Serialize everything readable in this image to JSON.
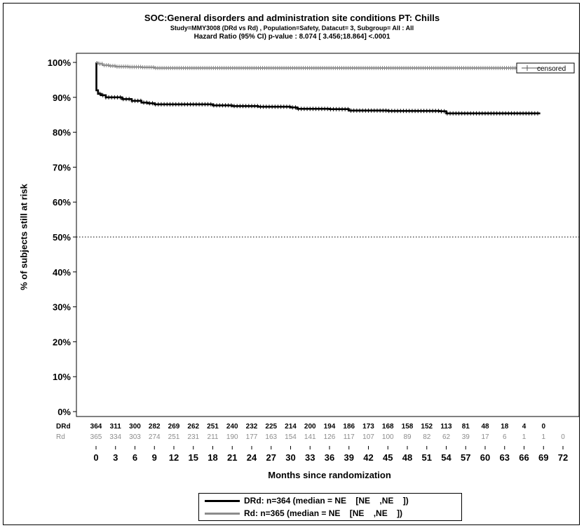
{
  "chart_data": {
    "type": "line",
    "title": "SOC:General disorders and administration site conditions PT: Chills",
    "subtitle": "Study=MMY3008 (DRd vs Rd) , Population=Safety, Datacut= 3, Subgroup= All : All",
    "hazard_ratio_text": "Hazard Ratio (95% CI) p-value :    8.074 [ 3.456;18.864]  <.0001",
    "xlabel": "Months since randomization",
    "ylabel": "% of subjects still at risk",
    "xlim": [
      0,
      72
    ],
    "ylim": [
      0,
      100
    ],
    "x_ticks": [
      0,
      3,
      6,
      9,
      12,
      15,
      18,
      21,
      24,
      27,
      30,
      33,
      36,
      39,
      42,
      45,
      48,
      51,
      54,
      57,
      60,
      63,
      66,
      69,
      72
    ],
    "y_ticks": [
      0,
      10,
      20,
      30,
      40,
      50,
      60,
      70,
      80,
      90,
      100
    ],
    "y_tick_format": "%",
    "reference_line_y": 50,
    "censored_legend_label": "censored",
    "series": [
      {
        "name": "DRd",
        "color": "#000000",
        "x": [
          0,
          0.05,
          0.3,
          0.8,
          1.5,
          2.5,
          4,
          5.5,
          7,
          8,
          9,
          12,
          16,
          18,
          20,
          21,
          23,
          25,
          28,
          30,
          31,
          33,
          36,
          38,
          39,
          42,
          45,
          48,
          51,
          53,
          54,
          57,
          60,
          63,
          66,
          68.5
        ],
        "y": [
          100,
          92,
          91,
          90.6,
          90,
          90,
          89.5,
          89,
          88.5,
          88.3,
          88,
          88,
          88,
          87.7,
          87.7,
          87.5,
          87.5,
          87.3,
          87.3,
          87.1,
          86.7,
          86.7,
          86.6,
          86.6,
          86.2,
          86.2,
          86.1,
          86.1,
          86.1,
          86,
          85.4,
          85.4,
          85.4,
          85.4,
          85.4,
          85.4
        ]
      },
      {
        "name": "Rd",
        "color": "#8c8c8c",
        "x": [
          0,
          0.3,
          1,
          2,
          3,
          5,
          7,
          9,
          12,
          20,
          30,
          40,
          50,
          60,
          69
        ],
        "y": [
          100,
          99.6,
          99.2,
          99,
          98.8,
          98.7,
          98.6,
          98.4,
          98.4,
          98.4,
          98.4,
          98.4,
          98.4,
          98.4,
          98.4
        ]
      }
    ],
    "at_risk_table": {
      "x": [
        0,
        3,
        6,
        9,
        12,
        15,
        18,
        21,
        24,
        27,
        30,
        33,
        36,
        39,
        42,
        45,
        48,
        51,
        54,
        57,
        60,
        63,
        66,
        69,
        72
      ],
      "rows": [
        {
          "label": "DRd",
          "color": "#000000",
          "values": [
            "364",
            "311",
            "300",
            "282",
            "269",
            "262",
            "251",
            "240",
            "232",
            "225",
            "214",
            "200",
            "194",
            "186",
            "173",
            "168",
            "158",
            "152",
            "113",
            "81",
            "48",
            "18",
            "4",
            "0",
            ""
          ]
        },
        {
          "label": "Rd",
          "color": "#8c8c8c",
          "values": [
            "365",
            "334",
            "303",
            "274",
            "251",
            "231",
            "211",
            "190",
            "177",
            "163",
            "154",
            "141",
            "126",
            "117",
            "107",
            "100",
            "89",
            "82",
            "62",
            "39",
            "17",
            "6",
            "1",
            "1",
            "0"
          ]
        }
      ]
    }
  },
  "legend": {
    "drd_label": "DRd: n=364 (median = NE    [NE    ,NE    ])",
    "rd_label": "Rd: n=365 (median = NE    [NE    ,NE    ])"
  }
}
